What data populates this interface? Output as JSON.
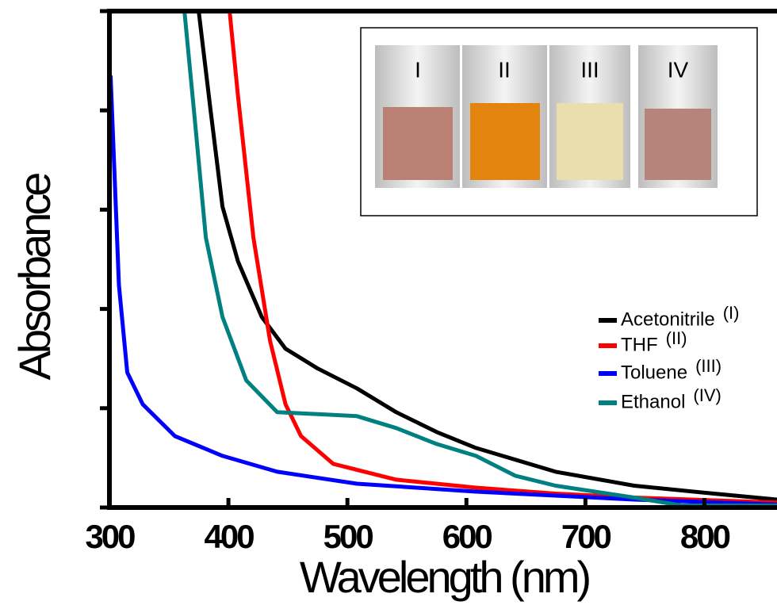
{
  "chart_data": {
    "type": "line",
    "x_label": "Wavelength (nm)",
    "y_label": "Absorbance",
    "xlim": [
      300,
      861
    ],
    "xticks": [
      300,
      400,
      500,
      600,
      700,
      800
    ],
    "ylim": [
      0,
      5
    ],
    "yticks": [
      0,
      1,
      2,
      3,
      4,
      5
    ],
    "show_ytick_labels": false,
    "series": [
      {
        "name": "Acetonitrile",
        "tag": "(I)",
        "color": "#000000",
        "x": [
          375,
          385,
          395,
          408,
          428,
          448,
          475,
          508,
          541,
          575,
          608,
          675,
          741,
          808,
          861
        ],
        "values": [
          5.0,
          4.0,
          3.03,
          2.48,
          1.92,
          1.6,
          1.4,
          1.2,
          0.96,
          0.76,
          0.6,
          0.36,
          0.22,
          0.14,
          0.08
        ]
      },
      {
        "name": "THF",
        "tag": "(II)",
        "color": "#ff0000",
        "x": [
          401,
          408,
          421,
          435,
          448,
          461,
          488,
          541,
          608,
          675,
          741,
          861
        ],
        "values": [
          5.0,
          4.15,
          2.72,
          1.68,
          1.04,
          0.72,
          0.44,
          0.28,
          0.2,
          0.14,
          0.1,
          0.05
        ]
      },
      {
        "name": "Toluene",
        "tag": "(III)",
        "color": "#0000ff",
        "x": [
          301,
          308,
          315,
          328,
          355,
          395,
          441,
          508,
          608,
          741,
          861
        ],
        "values": [
          4.35,
          2.24,
          1.36,
          1.04,
          0.72,
          0.52,
          0.36,
          0.24,
          0.16,
          0.08,
          0.03
        ]
      },
      {
        "name": "Ethanol",
        "tag": "(IV)",
        "color": "#008080",
        "x": [
          363,
          371,
          381,
          395,
          415,
          441,
          475,
          508,
          541,
          575,
          608,
          641,
          675,
          741,
          781,
          861
        ],
        "values": [
          5.0,
          4.0,
          2.72,
          1.92,
          1.28,
          0.96,
          0.94,
          0.92,
          0.8,
          0.64,
          0.52,
          0.32,
          0.22,
          0.1,
          0.02,
          0.02
        ]
      }
    ]
  },
  "inset": {
    "labels": [
      "I",
      "II",
      "III",
      "IV"
    ]
  }
}
